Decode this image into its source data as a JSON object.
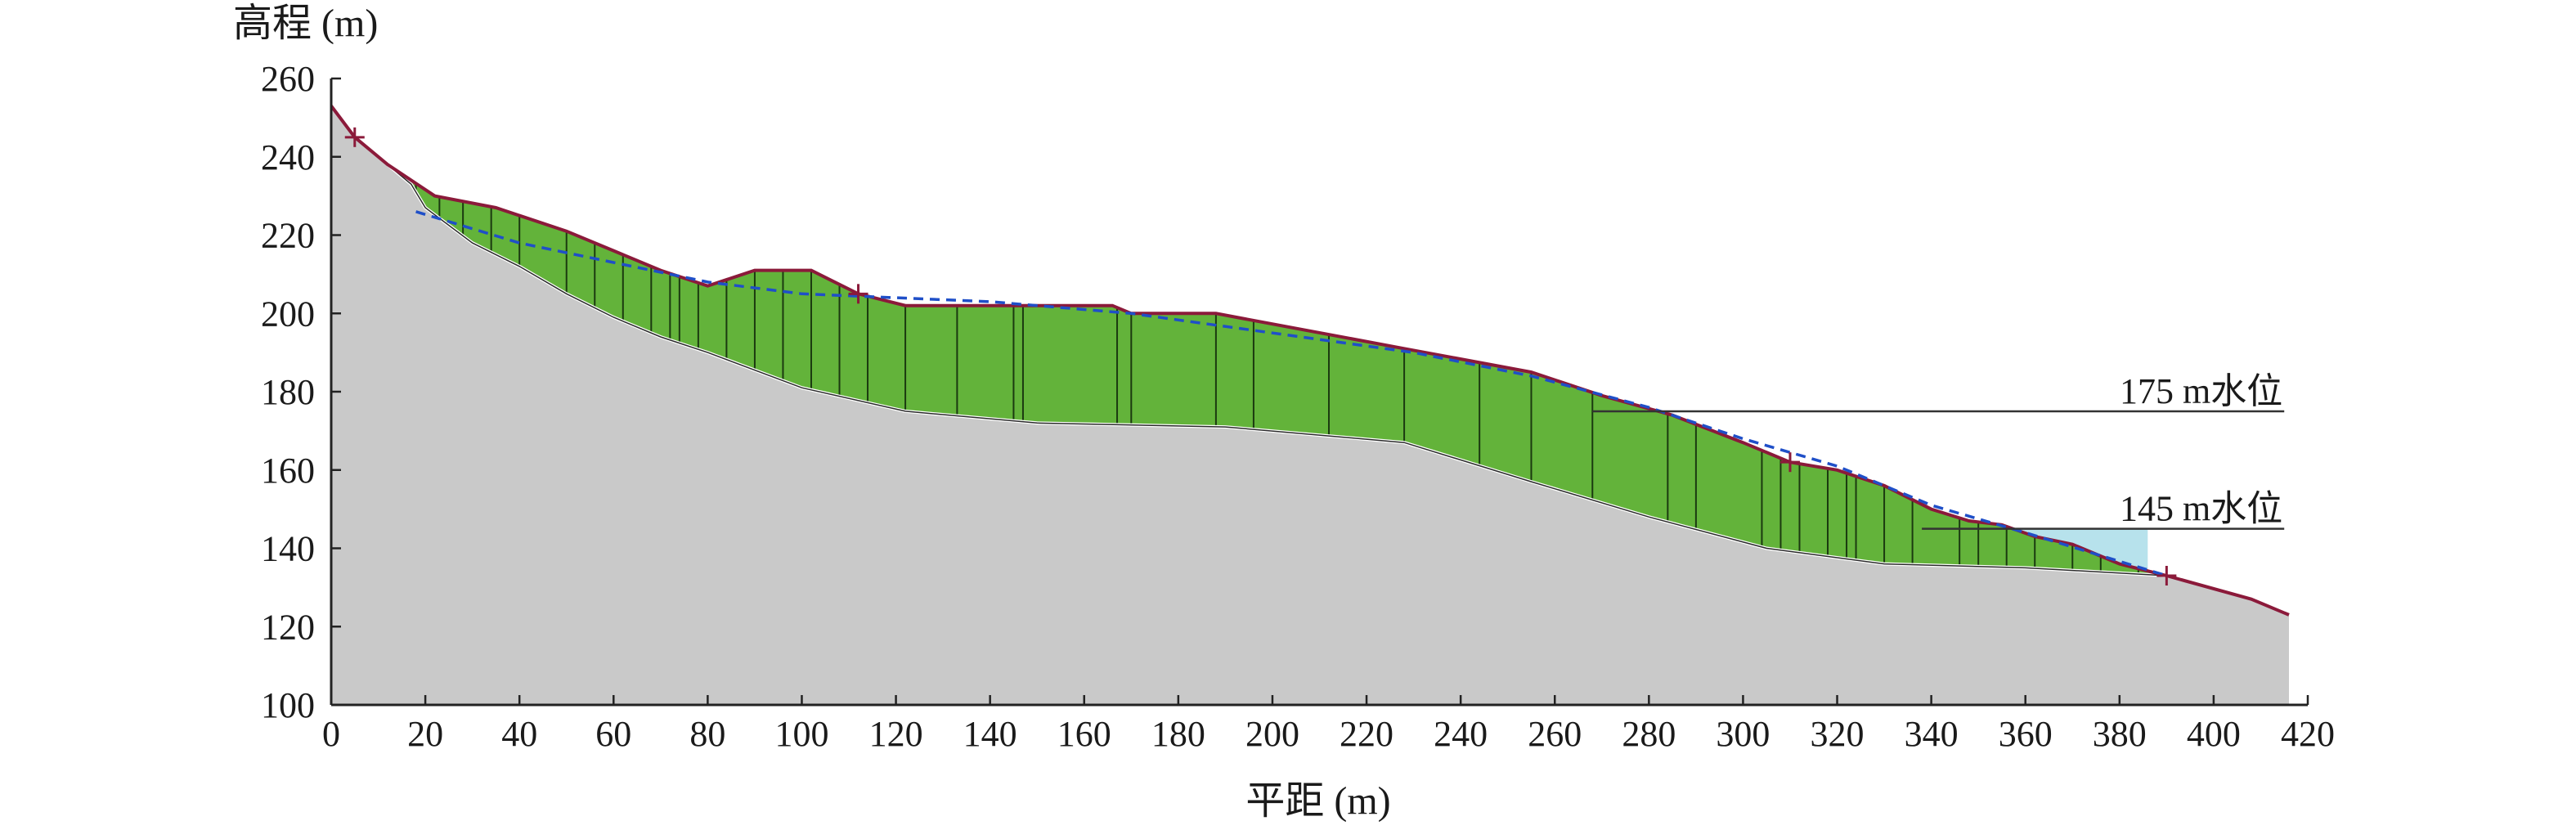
{
  "chart_data": {
    "type": "area",
    "ylabel": "高程 (m)",
    "xlabel": "平距 (m)",
    "xlim": [
      0,
      420
    ],
    "ylim": [
      100,
      260
    ],
    "x_ticks": [
      0,
      20,
      40,
      60,
      80,
      100,
      120,
      140,
      160,
      180,
      200,
      220,
      240,
      260,
      280,
      300,
      320,
      340,
      360,
      380,
      400,
      420
    ],
    "y_ticks": [
      100,
      120,
      140,
      160,
      180,
      200,
      220,
      240,
      260
    ],
    "grid": false,
    "colors": {
      "bedrock": "#c9c9c9",
      "landslide_body": "#63b33a",
      "reservoir_water": "#b7e2ec",
      "ground_surface": "#8b1a3a",
      "groundwater_line": "#1f4fc8",
      "slice_lines": "#1b3a10",
      "slip_surface": "#ffffff"
    },
    "ground_surface": [
      [
        0,
        253
      ],
      [
        5,
        245
      ],
      [
        12,
        238
      ],
      [
        22,
        230
      ],
      [
        35,
        227
      ],
      [
        50,
        221
      ],
      [
        60,
        216
      ],
      [
        70,
        211
      ],
      [
        80,
        207
      ],
      [
        90,
        211
      ],
      [
        102,
        211
      ],
      [
        112,
        205
      ],
      [
        122,
        202
      ],
      [
        166,
        202
      ],
      [
        170,
        200
      ],
      [
        188,
        200
      ],
      [
        228,
        191
      ],
      [
        255,
        185
      ],
      [
        270,
        179
      ],
      [
        285,
        174
      ],
      [
        300,
        167
      ],
      [
        310,
        162
      ],
      [
        320,
        160
      ],
      [
        330,
        156
      ],
      [
        340,
        150
      ],
      [
        348,
        147
      ],
      [
        355,
        146
      ],
      [
        362,
        143
      ],
      [
        370,
        141
      ],
      [
        380,
        136
      ],
      [
        390,
        133
      ],
      [
        408,
        127
      ],
      [
        416,
        123
      ]
    ],
    "slip_surface": [
      [
        12,
        238
      ],
      [
        17,
        233
      ],
      [
        20,
        227
      ],
      [
        30,
        218
      ],
      [
        40,
        212
      ],
      [
        50,
        205
      ],
      [
        60,
        199
      ],
      [
        70,
        194
      ],
      [
        80,
        190
      ],
      [
        100,
        181
      ],
      [
        122,
        175
      ],
      [
        150,
        172
      ],
      [
        190,
        171
      ],
      [
        228,
        167
      ],
      [
        255,
        157
      ],
      [
        280,
        148
      ],
      [
        305,
        140
      ],
      [
        330,
        136
      ],
      [
        360,
        135
      ],
      [
        390,
        133
      ]
    ],
    "groundwater_line": [
      [
        18,
        226
      ],
      [
        40,
        218
      ],
      [
        60,
        213
      ],
      [
        80,
        208
      ],
      [
        100,
        205
      ],
      [
        140,
        203
      ],
      [
        170,
        200
      ],
      [
        200,
        195
      ],
      [
        230,
        190
      ],
      [
        255,
        184
      ],
      [
        280,
        176
      ],
      [
        300,
        168
      ],
      [
        320,
        161
      ],
      [
        340,
        151
      ],
      [
        360,
        144
      ],
      [
        390,
        133
      ]
    ],
    "slice_x": [
      18,
      23,
      28,
      34,
      40,
      50,
      56,
      62,
      68,
      72,
      74,
      78,
      84,
      90,
      96,
      102,
      108,
      114,
      122,
      133,
      145,
      147,
      167,
      170,
      188,
      196,
      212,
      228,
      244,
      255,
      268,
      284,
      290,
      304,
      308,
      312,
      318,
      322,
      324,
      330,
      336,
      346,
      350,
      356,
      362,
      370,
      376,
      384
    ],
    "reservoir": {
      "level": 145,
      "x_start": 338,
      "x_end": 386
    },
    "water_levels": [
      {
        "level": 175,
        "label": "175 m水位",
        "x_start": 268,
        "x_end": 415
      },
      {
        "level": 145,
        "label": "145 m水位",
        "x_start": 338,
        "x_end": 415
      }
    ],
    "point_markers": [
      [
        5,
        245
      ],
      [
        112,
        205
      ],
      [
        310,
        162
      ],
      [
        390,
        133
      ]
    ]
  }
}
